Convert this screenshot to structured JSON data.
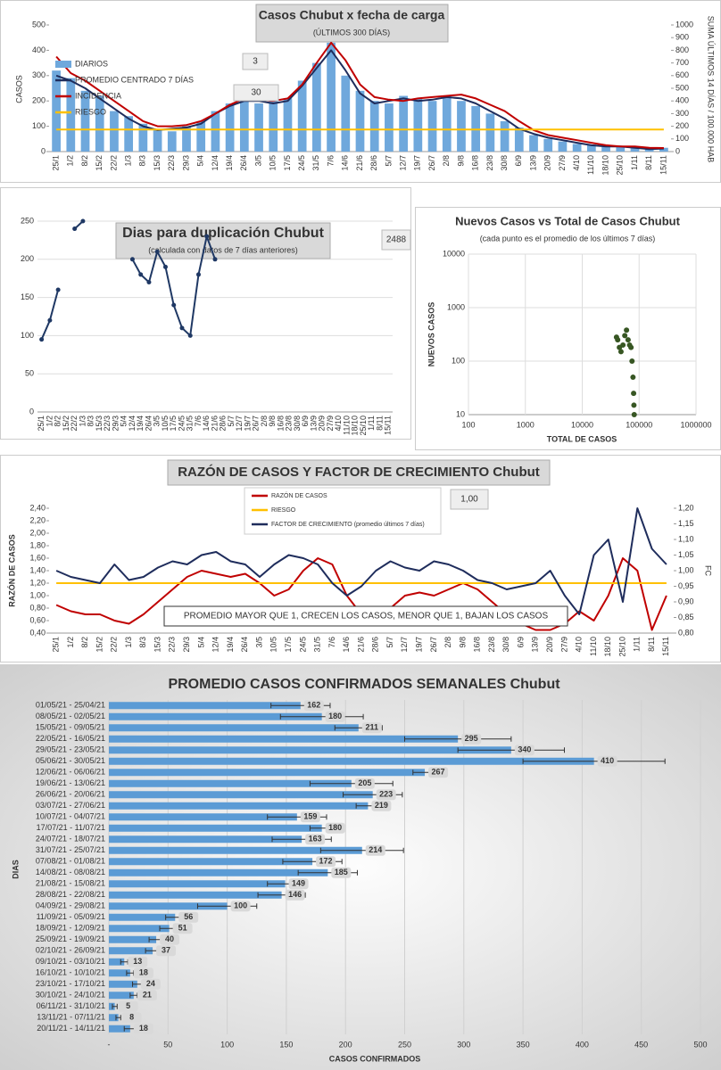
{
  "chart_data": [
    {
      "type": "combo",
      "title": "Casos Chubut x fecha de carga",
      "subtitle": "(ÚLTIMOS 300 DÍAS)",
      "ylabel": "CASOS",
      "y2label": "SUMA ÚLTIMOS 14 DÍAS / 100.000 HAB",
      "categories": [
        "25/1",
        "1/2",
        "8/2",
        "15/2",
        "22/2",
        "1/3",
        "8/3",
        "15/3",
        "22/3",
        "29/3",
        "5/4",
        "12/4",
        "19/4",
        "26/4",
        "3/5",
        "10/5",
        "17/5",
        "24/5",
        "31/5",
        "7/6",
        "14/6",
        "21/6",
        "28/6",
        "5/7",
        "12/7",
        "19/7",
        "26/7",
        "2/8",
        "9/8",
        "16/8",
        "23/8",
        "30/8",
        "6/9",
        "13/9",
        "20/9",
        "27/9",
        "4/10",
        "11/10",
        "18/10",
        "25/10",
        "1/11",
        "8/11",
        "15/11"
      ],
      "series": [
        {
          "name": "DIARIOS",
          "kind": "bar",
          "color": "#6fa8dc",
          "values": [
            320,
            290,
            240,
            220,
            160,
            140,
            110,
            90,
            80,
            100,
            120,
            160,
            190,
            210,
            190,
            200,
            210,
            280,
            350,
            430,
            300,
            240,
            200,
            190,
            220,
            210,
            200,
            220,
            200,
            180,
            150,
            120,
            95,
            65,
            50,
            40,
            30,
            28,
            18,
            22,
            14,
            12,
            15
          ]
        },
        {
          "name": "PROMEDIO CENTRADO 7 DÍAS",
          "kind": "line",
          "color": "#1f2d5c",
          "values": [
            300,
            280,
            250,
            210,
            170,
            130,
            100,
            85,
            90,
            95,
            110,
            150,
            180,
            200,
            200,
            190,
            200,
            260,
            330,
            400,
            320,
            230,
            190,
            200,
            210,
            200,
            205,
            215,
            210,
            190,
            160,
            130,
            90,
            70,
            55,
            45,
            35,
            25,
            20,
            20,
            15,
            10,
            12
          ]
        },
        {
          "name": "INCIDENCIA",
          "kind": "line",
          "axis": "y2",
          "color": "#c00000",
          "values": [
            750,
            620,
            560,
            480,
            400,
            320,
            240,
            200,
            200,
            210,
            240,
            300,
            370,
            420,
            410,
            400,
            420,
            530,
            700,
            860,
            720,
            530,
            430,
            410,
            400,
            420,
            430,
            440,
            450,
            420,
            370,
            320,
            240,
            170,
            130,
            110,
            90,
            70,
            50,
            40,
            40,
            30,
            28
          ]
        },
        {
          "name": "RIESGO",
          "kind": "line",
          "axis": "y2",
          "color": "#ffc000",
          "values": [
            175,
            175,
            175,
            175,
            175,
            175,
            175,
            175,
            175,
            175,
            175,
            175,
            175,
            175,
            175,
            175,
            175,
            175,
            175,
            175,
            175,
            175,
            175,
            175,
            175,
            175,
            175,
            175,
            175,
            175,
            175,
            175,
            175,
            175,
            175,
            175,
            175,
            175,
            175,
            175,
            175,
            175,
            175
          ]
        }
      ],
      "ylim": [
        0,
        500
      ],
      "yticks": [
        0,
        100,
        200,
        300,
        400,
        500
      ],
      "y2lim": [
        0,
        1000
      ],
      "y2ticks": [
        0,
        100,
        200,
        300,
        400,
        500,
        600,
        700,
        800,
        900,
        1000
      ],
      "grid": false,
      "legend": "top-left",
      "annotations": [
        "3",
        "30"
      ]
    },
    {
      "type": "line",
      "title": "Dias para duplicación Chubut",
      "subtitle": "(calculada con datos de 7 días anteriores)",
      "categories": [
        "25/1",
        "1/2",
        "8/2",
        "15/2",
        "22/2",
        "1/3",
        "8/3",
        "15/3",
        "22/3",
        "29/3",
        "5/4",
        "12/4",
        "19/4",
        "26/4",
        "3/5",
        "10/5",
        "17/5",
        "24/5",
        "31/5",
        "7/6",
        "14/6",
        "21/6",
        "28/6",
        "5/7",
        "12/7",
        "19/7",
        "26/7",
        "2/8",
        "9/8",
        "16/8",
        "23/8",
        "30/8",
        "6/9",
        "13/9",
        "20/9",
        "27/9",
        "4/10",
        "11/10",
        "18/10",
        "25/10",
        "1/11",
        "8/11",
        "15/11"
      ],
      "series": [
        {
          "color": "#1f3864",
          "values": [
            95,
            120,
            160,
            null,
            240,
            250,
            null,
            null,
            null,
            null,
            null,
            200,
            180,
            170,
            210,
            190,
            140,
            110,
            100,
            180,
            230,
            200,
            null,
            null,
            null,
            null,
            null,
            null,
            null,
            null,
            null,
            null,
            null,
            null,
            null,
            null,
            null,
            null,
            null,
            null,
            null,
            null,
            null
          ]
        }
      ],
      "ylim": [
        0,
        250
      ],
      "yticks": [
        0,
        50,
        100,
        150,
        200,
        250
      ],
      "grid": true,
      "markers": true,
      "annotations": [
        "2488"
      ]
    },
    {
      "type": "scatter",
      "title": "Nuevos Casos vs Total de Casos Chubut",
      "subtitle": "(cada punto es el promedio de los últimos 7 días)",
      "xlabel": "TOTAL DE CASOS",
      "ylabel": "NUEVOS CASOS",
      "x": [
        40000,
        42000,
        45000,
        48000,
        52000,
        56000,
        60000,
        64000,
        68000,
        72000,
        75000,
        78000,
        80000,
        81000,
        82000
      ],
      "values": [
        280,
        250,
        180,
        150,
        200,
        300,
        380,
        250,
        200,
        180,
        100,
        50,
        25,
        15,
        10
      ],
      "color": "#375623",
      "xlog": true,
      "ylog": true,
      "xlim": [
        100,
        1000000
      ],
      "xticks": [
        100,
        1000,
        10000,
        100000,
        1000000
      ],
      "ylim": [
        10,
        10000
      ],
      "yticks": [
        10,
        100,
        1000,
        10000
      ],
      "grid": true
    },
    {
      "type": "combo",
      "title": "RAZÓN DE CASOS Y FACTOR DE CRECIMIENTO Chubut",
      "ylabel": "RAZÓN DE CASOS",
      "y2label": "FC",
      "categories": [
        "25/1",
        "1/2",
        "8/2",
        "15/2",
        "22/2",
        "1/3",
        "8/3",
        "15/3",
        "22/3",
        "29/3",
        "5/4",
        "12/4",
        "19/4",
        "26/4",
        "3/5",
        "10/5",
        "17/5",
        "24/5",
        "31/5",
        "7/6",
        "14/6",
        "21/6",
        "28/6",
        "5/7",
        "12/7",
        "19/7",
        "26/7",
        "2/8",
        "9/8",
        "16/8",
        "23/8",
        "30/8",
        "6/9",
        "13/9",
        "20/9",
        "27/9",
        "4/10",
        "11/10",
        "18/10",
        "25/10",
        "1/11",
        "8/11",
        "15/11"
      ],
      "series": [
        {
          "name": "RAZÓN DE CASOS",
          "kind": "line",
          "color": "#c00000",
          "values": [
            0.85,
            0.75,
            0.7,
            0.7,
            0.6,
            0.55,
            0.7,
            0.9,
            1.1,
            1.3,
            1.4,
            1.35,
            1.3,
            1.35,
            1.2,
            1.0,
            1.1,
            1.4,
            1.6,
            1.5,
            1.0,
            0.7,
            0.6,
            0.8,
            1.0,
            1.05,
            1.0,
            1.1,
            1.2,
            1.1,
            0.9,
            0.7,
            0.55,
            0.45,
            0.45,
            0.55,
            0.75,
            0.6,
            1.0,
            1.6,
            1.4,
            0.45,
            1.0
          ]
        },
        {
          "name": "RIESGO",
          "kind": "line",
          "color": "#ffc000",
          "values": [
            1.2,
            1.2,
            1.2,
            1.2,
            1.2,
            1.2,
            1.2,
            1.2,
            1.2,
            1.2,
            1.2,
            1.2,
            1.2,
            1.2,
            1.2,
            1.2,
            1.2,
            1.2,
            1.2,
            1.2,
            1.2,
            1.2,
            1.2,
            1.2,
            1.2,
            1.2,
            1.2,
            1.2,
            1.2,
            1.2,
            1.2,
            1.2,
            1.2,
            1.2,
            1.2,
            1.2,
            1.2,
            1.2,
            1.2,
            1.2,
            1.2,
            1.2,
            1.2
          ]
        },
        {
          "name": "FACTOR DE CRECIMIENTO (promedio últimos 7 días)",
          "kind": "line",
          "axis": "y2",
          "color": "#1f2d5c",
          "values": [
            1.0,
            0.98,
            0.97,
            0.96,
            1.02,
            0.97,
            0.98,
            1.01,
            1.03,
            1.02,
            1.05,
            1.06,
            1.03,
            1.02,
            0.98,
            1.02,
            1.05,
            1.04,
            1.02,
            0.96,
            0.92,
            0.95,
            1.0,
            1.03,
            1.01,
            1.0,
            1.03,
            1.02,
            1.0,
            0.97,
            0.96,
            0.94,
            0.95,
            0.96,
            1.0,
            0.92,
            0.86,
            1.05,
            1.1,
            0.9,
            1.2,
            1.07,
            1.02
          ]
        }
      ],
      "ylim": [
        0.4,
        2.4
      ],
      "yticks": [
        {
          "value": 0.4,
          "label": "0,40"
        },
        {
          "value": 0.6,
          "label": "0,60"
        },
        {
          "value": 0.8,
          "label": "0,80"
        },
        {
          "value": 1.0,
          "label": "1,00"
        },
        {
          "value": 1.2,
          "label": "1,20"
        },
        {
          "value": 1.4,
          "label": "1,40"
        },
        {
          "value": 1.6,
          "label": "1,60"
        },
        {
          "value": 1.8,
          "label": "1,80"
        },
        {
          "value": 2.0,
          "label": "2,00"
        },
        {
          "value": 2.2,
          "label": "2,20"
        },
        {
          "value": 2.4,
          "label": "2,40"
        }
      ],
      "y2lim": [
        0.8,
        1.2
      ],
      "y2ticks": [
        {
          "value": 0.8,
          "label": "0,80"
        },
        {
          "value": 0.85,
          "label": "0,85"
        },
        {
          "value": 0.9,
          "label": "0,90"
        },
        {
          "value": 0.95,
          "label": "0,95"
        },
        {
          "value": 1.0,
          "label": "1,00"
        },
        {
          "value": 1.05,
          "label": "1,05"
        },
        {
          "value": 1.1,
          "label": "1,10"
        },
        {
          "value": 1.15,
          "label": "1,15"
        },
        {
          "value": 1.2,
          "label": "1,20"
        }
      ],
      "grid": false,
      "legend": "top",
      "annotations": [
        "1,00",
        "PROMEDIO MAYOR QUE 1, CRECEN LOS CASOS, MENOR QUE 1, BAJAN LOS CASOS"
      ]
    },
    {
      "type": "barh",
      "title": "PROMEDIO CASOS CONFIRMADOS SEMANALES Chubut",
      "ylabel": "DIAS",
      "xlabel": "CASOS CONFIRMADOS",
      "categories": [
        "01/05/21 - 25/04/21",
        "08/05/21 - 02/05/21",
        "15/05/21 - 09/05/21",
        "22/05/21 - 16/05/21",
        "29/05/21 - 23/05/21",
        "05/06/21 - 30/05/21",
        "12/06/21 - 06/06/21",
        "19/06/21 - 13/06/21",
        "26/06/21 - 20/06/21",
        "03/07/21 - 27/06/21",
        "10/07/21 - 04/07/21",
        "17/07/21 - 11/07/21",
        "24/07/21 - 18/07/21",
        "31/07/21 - 25/07/21",
        "07/08/21 - 01/08/21",
        "14/08/21 - 08/08/21",
        "21/08/21 - 15/08/21",
        "28/08/21 - 22/08/21",
        "04/09/21 - 29/08/21",
        "11/09/21 - 05/09/21",
        "18/09/21 - 12/09/21",
        "25/09/21 - 19/09/21",
        "02/10/21 - 26/09/21",
        "09/10/21 - 03/10/21",
        "16/10/21 - 10/10/21",
        "23/10/21 - 17/10/21",
        "30/10/21 - 24/10/21",
        "06/11/21 - 31/10/21",
        "13/11/21 - 07/11/21",
        "20/11/21 - 14/11/21"
      ],
      "values": [
        162,
        180,
        211,
        295,
        340,
        410,
        267,
        205,
        223,
        219,
        159,
        180,
        163,
        214,
        172,
        185,
        149,
        146,
        100,
        56,
        51,
        40,
        37,
        13,
        18,
        24,
        21,
        5,
        8,
        18
      ],
      "errors": [
        25,
        35,
        20,
        45,
        45,
        60,
        10,
        35,
        25,
        10,
        25,
        10,
        25,
        35,
        25,
        25,
        15,
        20,
        25,
        8,
        8,
        6,
        6,
        3,
        3,
        4,
        3,
        2,
        2,
        5
      ],
      "color": "#5b9bd5",
      "xlim": [
        0,
        500
      ],
      "xticks": [
        {
          "value": 0,
          "label": "-"
        },
        50,
        100,
        150,
        200,
        250,
        300,
        350,
        400,
        450,
        500
      ],
      "grid": true
    }
  ]
}
